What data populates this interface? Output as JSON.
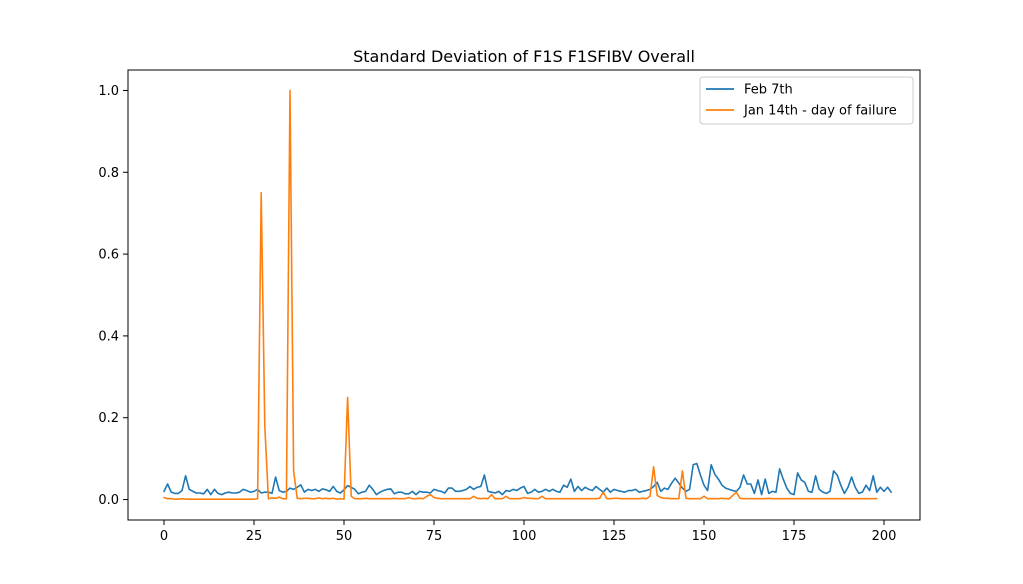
{
  "chart_data": {
    "type": "line",
    "title": "Standard Deviation of F1S F1SFIBV Overall",
    "xlabel": "",
    "ylabel": "",
    "xlim": [
      -10,
      210
    ],
    "ylim": [
      -0.05,
      1.05
    ],
    "xticks": [
      0,
      25,
      50,
      75,
      100,
      125,
      150,
      175,
      200
    ],
    "yticks": [
      0.0,
      0.2,
      0.4,
      0.6,
      0.8,
      1.0
    ],
    "xtick_labels": [
      "0",
      "25",
      "50",
      "75",
      "100",
      "125",
      "150",
      "175",
      "200"
    ],
    "ytick_labels": [
      "0.0",
      "0.2",
      "0.4",
      "0.6",
      "0.8",
      "1.0"
    ],
    "grid": false,
    "legend_position": "top-right",
    "series": [
      {
        "name": "Feb 7th",
        "color": "#1f77b4",
        "x_start": 0,
        "values": [
          0.02,
          0.038,
          0.018,
          0.015,
          0.015,
          0.022,
          0.058,
          0.025,
          0.02,
          0.016,
          0.016,
          0.014,
          0.025,
          0.012,
          0.025,
          0.015,
          0.012,
          0.016,
          0.018,
          0.016,
          0.016,
          0.018,
          0.025,
          0.022,
          0.018,
          0.02,
          0.025,
          0.016,
          0.018,
          0.018,
          0.015,
          0.055,
          0.022,
          0.018,
          0.02,
          0.028,
          0.025,
          0.03,
          0.036,
          0.018,
          0.025,
          0.022,
          0.025,
          0.02,
          0.026,
          0.024,
          0.02,
          0.032,
          0.02,
          0.016,
          0.024,
          0.034,
          0.03,
          0.025,
          0.014,
          0.018,
          0.02,
          0.035,
          0.025,
          0.012,
          0.018,
          0.022,
          0.025,
          0.026,
          0.014,
          0.018,
          0.018,
          0.014,
          0.014,
          0.02,
          0.012,
          0.02,
          0.018,
          0.018,
          0.016,
          0.025,
          0.022,
          0.02,
          0.016,
          0.028,
          0.028,
          0.02,
          0.02,
          0.022,
          0.025,
          0.032,
          0.025,
          0.03,
          0.032,
          0.06,
          0.02,
          0.018,
          0.016,
          0.02,
          0.012,
          0.022,
          0.02,
          0.025,
          0.022,
          0.028,
          0.032,
          0.015,
          0.018,
          0.025,
          0.018,
          0.02,
          0.025,
          0.02,
          0.025,
          0.02,
          0.018,
          0.035,
          0.03,
          0.05,
          0.02,
          0.032,
          0.022,
          0.03,
          0.025,
          0.022,
          0.032,
          0.025,
          0.018,
          0.028,
          0.018,
          0.025,
          0.022,
          0.02,
          0.018,
          0.022,
          0.022,
          0.025,
          0.018,
          0.02,
          0.022,
          0.025,
          0.032,
          0.042,
          0.02,
          0.028,
          0.025,
          0.04,
          0.052,
          0.04,
          0.028,
          0.02,
          0.025,
          0.085,
          0.088,
          0.06,
          0.035,
          0.022,
          0.085,
          0.062,
          0.05,
          0.035,
          0.028,
          0.025,
          0.022,
          0.02,
          0.03,
          0.06,
          0.038,
          0.038,
          0.015,
          0.048,
          0.012,
          0.05,
          0.015,
          0.02,
          0.018,
          0.075,
          0.05,
          0.028,
          0.015,
          0.012,
          0.065,
          0.048,
          0.042,
          0.02,
          0.018,
          0.058,
          0.025,
          0.018,
          0.015,
          0.02,
          0.07,
          0.06,
          0.035,
          0.015,
          0.03,
          0.055,
          0.03,
          0.015,
          0.018,
          0.035,
          0.022,
          0.058,
          0.018,
          0.03,
          0.02,
          0.03,
          0.018
        ]
      },
      {
        "name": "Jan 14th - day of failure",
        "color": "#ff7f0e",
        "x_start": 0,
        "values": [
          0.005,
          0.002,
          0.002,
          0.001,
          0.001,
          0.002,
          0.001,
          0.001,
          0.001,
          0.001,
          0.001,
          0.001,
          0.001,
          0.001,
          0.001,
          0.001,
          0.001,
          0.001,
          0.001,
          0.001,
          0.001,
          0.001,
          0.001,
          0.001,
          0.001,
          0.001,
          0.002,
          0.75,
          0.18,
          0.002,
          0.004,
          0.003,
          0.006,
          0.002,
          0.002,
          1.0,
          0.07,
          0.003,
          0.002,
          0.003,
          0.003,
          0.002,
          0.002,
          0.004,
          0.002,
          0.003,
          0.002,
          0.003,
          0.001,
          0.002,
          0.001,
          0.25,
          0.008,
          0.002,
          0.002,
          0.002,
          0.003,
          0.002,
          0.002,
          0.002,
          0.002,
          0.002,
          0.002,
          0.002,
          0.003,
          0.002,
          0.002,
          0.002,
          0.005,
          0.002,
          0.002,
          0.003,
          0.002,
          0.008,
          0.012,
          0.005,
          0.003,
          0.002,
          0.002,
          0.002,
          0.002,
          0.002,
          0.002,
          0.002,
          0.002,
          0.002,
          0.008,
          0.003,
          0.002,
          0.003,
          0.002,
          0.012,
          0.002,
          0.002,
          0.002,
          0.008,
          0.002,
          0.002,
          0.002,
          0.002,
          0.005,
          0.003,
          0.003,
          0.002,
          0.002,
          0.008,
          0.002,
          0.002,
          0.002,
          0.002,
          0.002,
          0.002,
          0.002,
          0.002,
          0.002,
          0.002,
          0.002,
          0.002,
          0.002,
          0.002,
          0.002,
          0.003,
          0.018,
          0.002,
          0.002,
          0.003,
          0.003,
          0.002,
          0.002,
          0.002,
          0.002,
          0.002,
          0.002,
          0.003,
          0.002,
          0.008,
          0.08,
          0.01,
          0.005,
          0.003,
          0.003,
          0.002,
          0.002,
          0.002,
          0.07,
          0.003,
          0.002,
          0.002,
          0.002,
          0.002,
          0.008,
          0.002,
          0.002,
          0.002,
          0.002,
          0.003,
          0.002,
          0.002,
          0.01,
          0.018,
          0.003,
          0.002,
          0.002,
          0.002,
          0.002,
          0.002,
          0.002,
          0.002,
          0.003,
          0.002,
          0.002,
          0.002,
          0.002,
          0.002,
          0.002,
          0.002,
          0.002,
          0.002,
          0.002,
          0.002,
          0.002,
          0.002,
          0.002,
          0.002,
          0.002,
          0.002,
          0.002,
          0.002,
          0.002,
          0.002,
          0.002,
          0.002,
          0.002,
          0.002,
          0.002,
          0.002,
          0.002,
          0.002,
          0.002
        ]
      }
    ]
  }
}
